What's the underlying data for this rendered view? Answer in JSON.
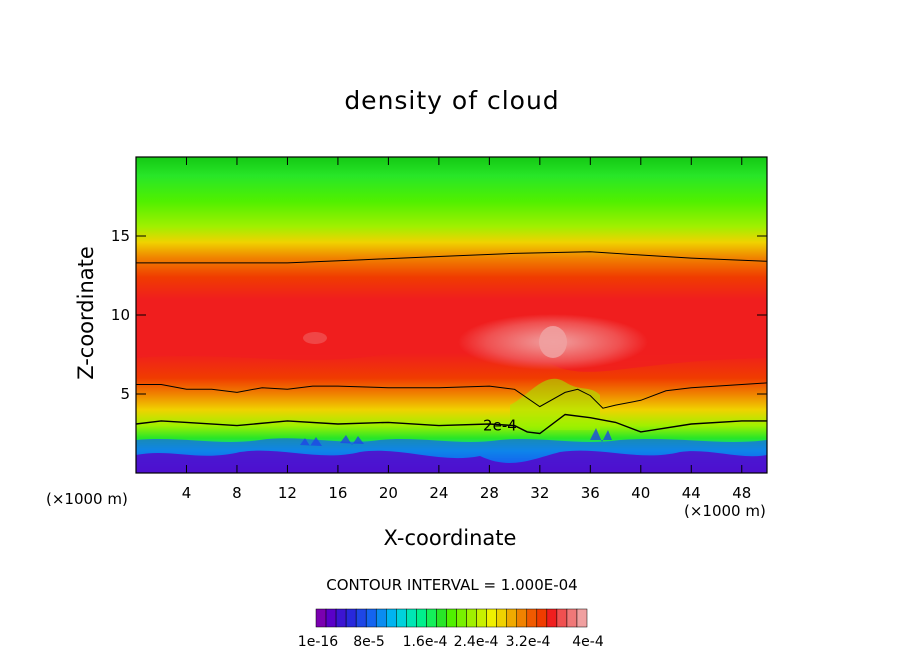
{
  "chart_data": {
    "type": "heatmap",
    "title": "density of cloud",
    "xlabel": "X-coordinate",
    "ylabel": "Z-coordinate",
    "x_unit": "(×1000 m)",
    "xlim": [
      0,
      50
    ],
    "ylim": [
      0,
      20
    ],
    "x_ticks": [
      4,
      8,
      12,
      16,
      20,
      24,
      28,
      32,
      36,
      40,
      44,
      48
    ],
    "y_ticks": [
      5,
      10,
      15
    ],
    "contour_interval_label": "CONTOUR INTERVAL = 1.000E-04",
    "contour_annotation": {
      "text": "2e-4",
      "x": 27.5,
      "z": 3.0
    },
    "contour_lines": [
      {
        "level": "2e-4",
        "points": [
          [
            0,
            3.1
          ],
          [
            2,
            3.3
          ],
          [
            4,
            3.2
          ],
          [
            8,
            3.0
          ],
          [
            12,
            3.3
          ],
          [
            16,
            3.1
          ],
          [
            20,
            3.2
          ],
          [
            24,
            3.0
          ],
          [
            28,
            3.1
          ],
          [
            30,
            3.0
          ],
          [
            31,
            2.6
          ],
          [
            32,
            2.5
          ],
          [
            34,
            3.7
          ],
          [
            36,
            3.5
          ],
          [
            38,
            3.2
          ],
          [
            40,
            2.6
          ],
          [
            44,
            3.1
          ],
          [
            48,
            3.3
          ],
          [
            50,
            3.3
          ]
        ]
      },
      {
        "level": "3e-4",
        "points": [
          [
            0,
            5.6
          ],
          [
            2,
            5.6
          ],
          [
            4,
            5.3
          ],
          [
            6,
            5.3
          ],
          [
            8,
            5.1
          ],
          [
            10,
            5.4
          ],
          [
            12,
            5.3
          ],
          [
            14,
            5.5
          ],
          [
            16,
            5.5
          ],
          [
            20,
            5.4
          ],
          [
            24,
            5.4
          ],
          [
            28,
            5.5
          ],
          [
            30,
            5.3
          ],
          [
            32,
            4.2
          ],
          [
            34,
            5.1
          ],
          [
            35,
            5.3
          ],
          [
            36,
            4.9
          ],
          [
            37,
            4.1
          ],
          [
            38,
            4.3
          ],
          [
            40,
            4.6
          ],
          [
            42,
            5.2
          ],
          [
            44,
            5.4
          ],
          [
            46,
            5.5
          ],
          [
            48,
            5.6
          ],
          [
            50,
            5.7
          ]
        ]
      },
      {
        "level": "3e-4",
        "points": [
          [
            0,
            13.3
          ],
          [
            6,
            13.3
          ],
          [
            12,
            13.3
          ],
          [
            18,
            13.5
          ],
          [
            24,
            13.7
          ],
          [
            30,
            13.9
          ],
          [
            36,
            14.0
          ],
          [
            40,
            13.8
          ],
          [
            44,
            13.6
          ],
          [
            50,
            13.4
          ]
        ]
      }
    ],
    "field_bands_z": {
      "surface_max": 1.2,
      "band_2e-4": 3.2,
      "band_3e-4": 5.5,
      "core_max_4e-4": {
        "x": 33,
        "z": 8.5
      },
      "upper_3e-4": 13.5,
      "top": 20
    },
    "colorbar": {
      "colors": [
        "#7a00b0",
        "#5a00c8",
        "#3c14d2",
        "#2828dc",
        "#1e46e6",
        "#1464f0",
        "#0a8cf0",
        "#00b4f0",
        "#00d2dc",
        "#00e6b4",
        "#00f08c",
        "#14f05a",
        "#28e628",
        "#50f000",
        "#78f000",
        "#a0f000",
        "#c8f000",
        "#f0f000",
        "#f0d200",
        "#f0aa00",
        "#f08200",
        "#f05a00",
        "#f03c00",
        "#f01e1e",
        "#f05050",
        "#f07878",
        "#f0a0a0"
      ],
      "labels": [
        "1e-16",
        "8e-5",
        "1.6e-4",
        "2.4e-4",
        "3.2e-4",
        "4e-4"
      ]
    }
  }
}
